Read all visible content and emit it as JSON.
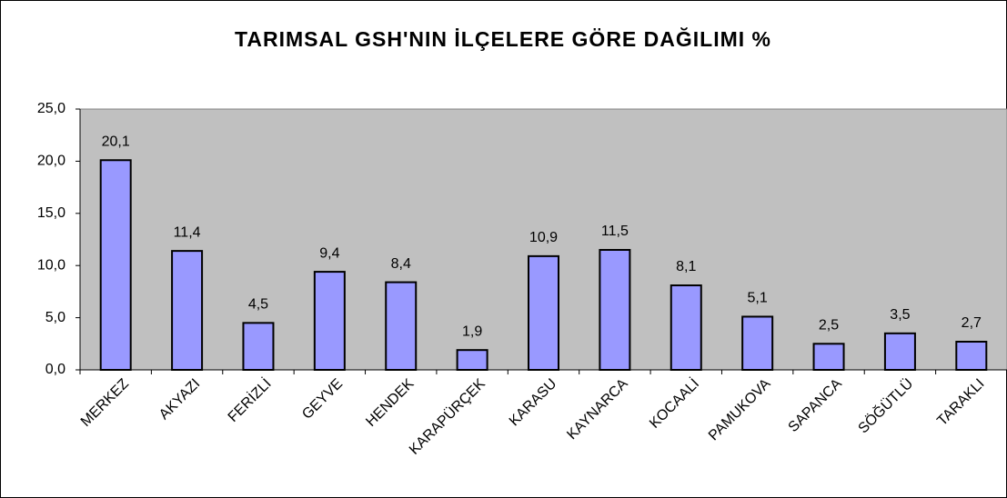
{
  "chart_data": {
    "type": "bar",
    "title": "TARIMSAL GSH'NIN İLÇELERE GÖRE DAĞILIMI %",
    "categories": [
      "MERKEZ",
      "AKYAZI",
      "FERİZLİ",
      "GEYVE",
      "HENDEK",
      "KARAPÜRÇEK",
      "KARASU",
      "KAYNARCA",
      "KOCAALİ",
      "PAMUKOVA",
      "SAPANCA",
      "SÖĞÜTLÜ",
      "TARAKLI"
    ],
    "values": [
      20.1,
      11.4,
      4.5,
      9.4,
      8.4,
      1.9,
      10.9,
      11.5,
      8.1,
      5.1,
      2.5,
      3.5,
      2.7
    ],
    "value_labels": [
      "20,1",
      "11,4",
      "4,5",
      "9,4",
      "8,4",
      "1,9",
      "10,9",
      "11,5",
      "8,1",
      "5,1",
      "2,5",
      "3,5",
      "2,7"
    ],
    "color": "#9999ff",
    "ylim": [
      0,
      25
    ],
    "yticks": [
      {
        "value": 0,
        "label": "0,0"
      },
      {
        "value": 5,
        "label": "5,0"
      },
      {
        "value": 10,
        "label": "10,0"
      },
      {
        "value": 15,
        "label": "15,0"
      },
      {
        "value": 20,
        "label": "20,0"
      },
      {
        "value": 25,
        "label": "25,0"
      }
    ],
    "grid": false
  }
}
